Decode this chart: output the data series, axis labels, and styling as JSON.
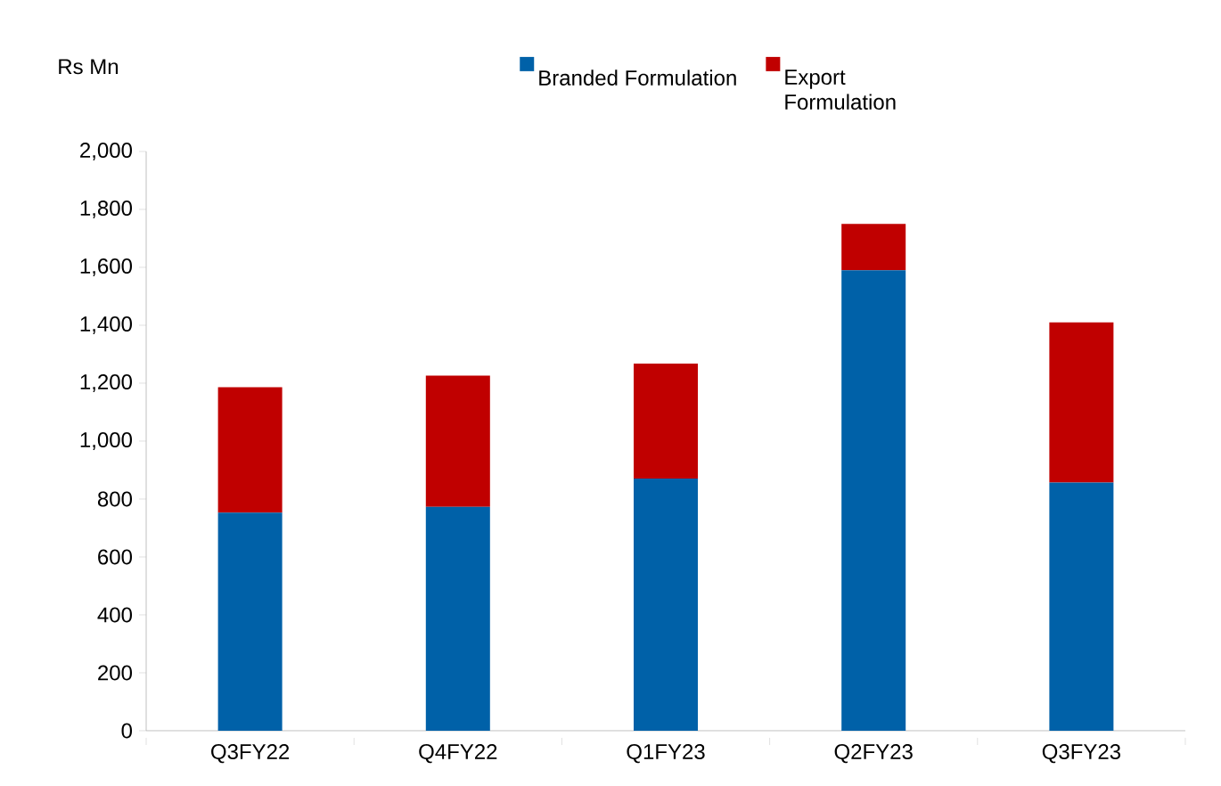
{
  "chart_data": {
    "type": "bar",
    "stacked": true,
    "ylabel": "Rs Mn",
    "categories": [
      "Q3FY22",
      "Q4FY22",
      "Q1FY23",
      "Q2FY23",
      "Q3FY23"
    ],
    "series": [
      {
        "name": "Branded Formulation",
        "color": "#0061a8",
        "values": [
          753,
          773,
          871,
          1590,
          857
        ]
      },
      {
        "name": "Export Formulation",
        "color": "#c00000",
        "values": [
          433,
          453,
          397,
          160,
          553
        ]
      }
    ],
    "ylim": [
      0,
      2000
    ],
    "yticks": [
      {
        "value": 0,
        "label": "0"
      },
      {
        "value": 200,
        "label": "200"
      },
      {
        "value": 400,
        "label": "400"
      },
      {
        "value": 600,
        "label": "600"
      },
      {
        "value": 800,
        "label": "800"
      },
      {
        "value": 1000,
        "label": "1,000"
      },
      {
        "value": 1200,
        "label": "1,200"
      },
      {
        "value": 1400,
        "label": "1,400"
      },
      {
        "value": 1600,
        "label": "1,600"
      },
      {
        "value": 1800,
        "label": "1,800"
      },
      {
        "value": 2000,
        "label": "2,000"
      }
    ],
    "grid": false,
    "legend": "top"
  }
}
